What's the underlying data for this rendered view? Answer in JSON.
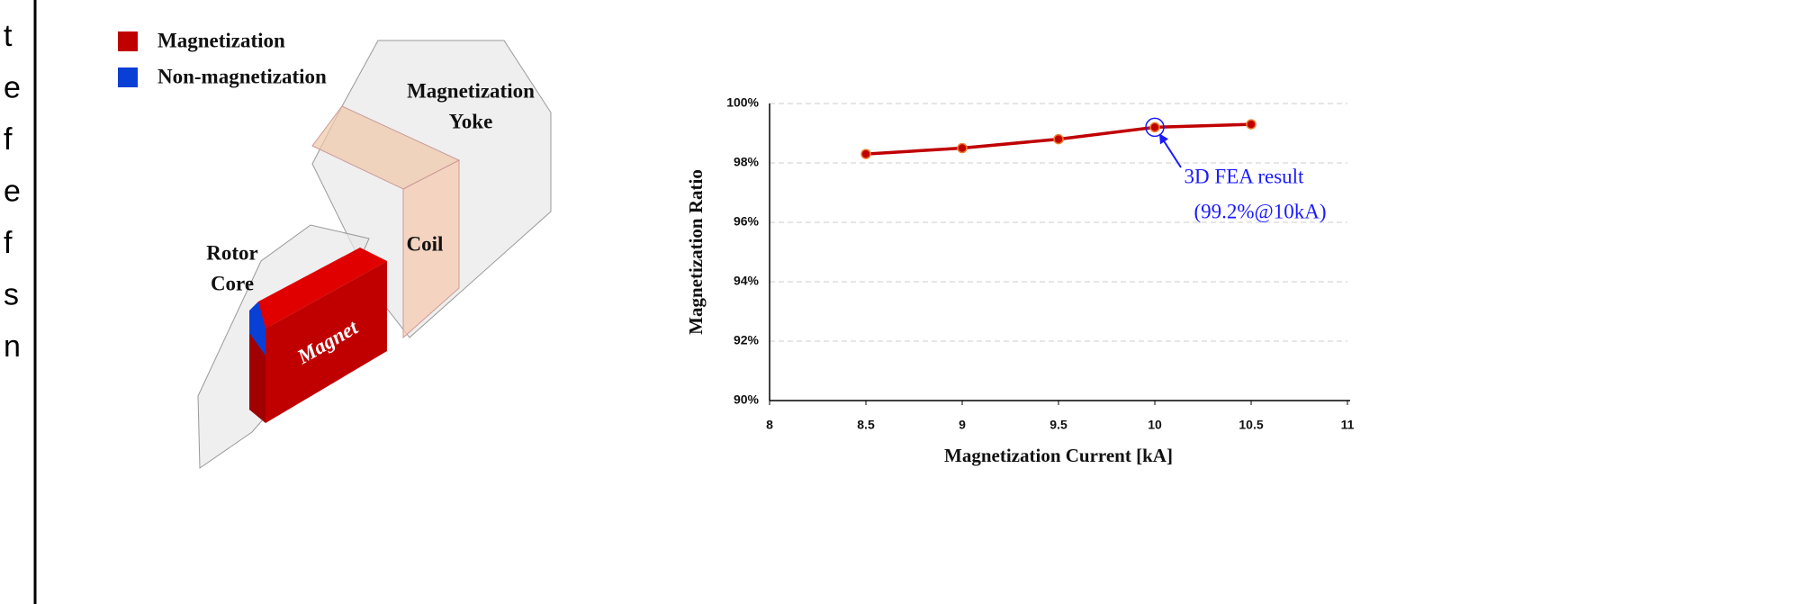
{
  "side_text": [
    "t",
    "e",
    "f",
    "e",
    "f",
    "s",
    "n"
  ],
  "diagram": {
    "legend": [
      {
        "label": "Magnetization",
        "color": "#c00000"
      },
      {
        "label": "Non-magnetization",
        "color": "#0a3fd6"
      }
    ],
    "labels": {
      "yoke": [
        "Magnetization",
        "Yoke"
      ],
      "coil": "Coil",
      "rotor_core": [
        "Rotor",
        "Core"
      ],
      "magnet": "Magnet"
    }
  },
  "chart_data": {
    "type": "line",
    "x_label": "Magnetization Current [kA]",
    "y_label": "Magnetization Ratio",
    "x": [
      8.5,
      9,
      9.5,
      10,
      10.5
    ],
    "series": [
      {
        "color": "#c00000",
        "values": [
          98.3,
          98.5,
          98.8,
          99.2,
          99.3
        ]
      }
    ],
    "xlim": [
      8,
      11
    ],
    "xticks": [
      8,
      8.5,
      9,
      9.5,
      10,
      10.5,
      11
    ],
    "ylim": [
      90,
      100
    ],
    "yticks": [
      {
        "value": 90,
        "label": "90%"
      },
      {
        "value": 92,
        "label": "92%"
      },
      {
        "value": 94,
        "label": "94%"
      },
      {
        "value": 96,
        "label": "96%"
      },
      {
        "value": 98,
        "label": "98%"
      },
      {
        "value": 100,
        "label": "100%"
      }
    ],
    "grid": true,
    "annotation": [
      "3D FEA result",
      "(99.2%@10kA)"
    ]
  }
}
